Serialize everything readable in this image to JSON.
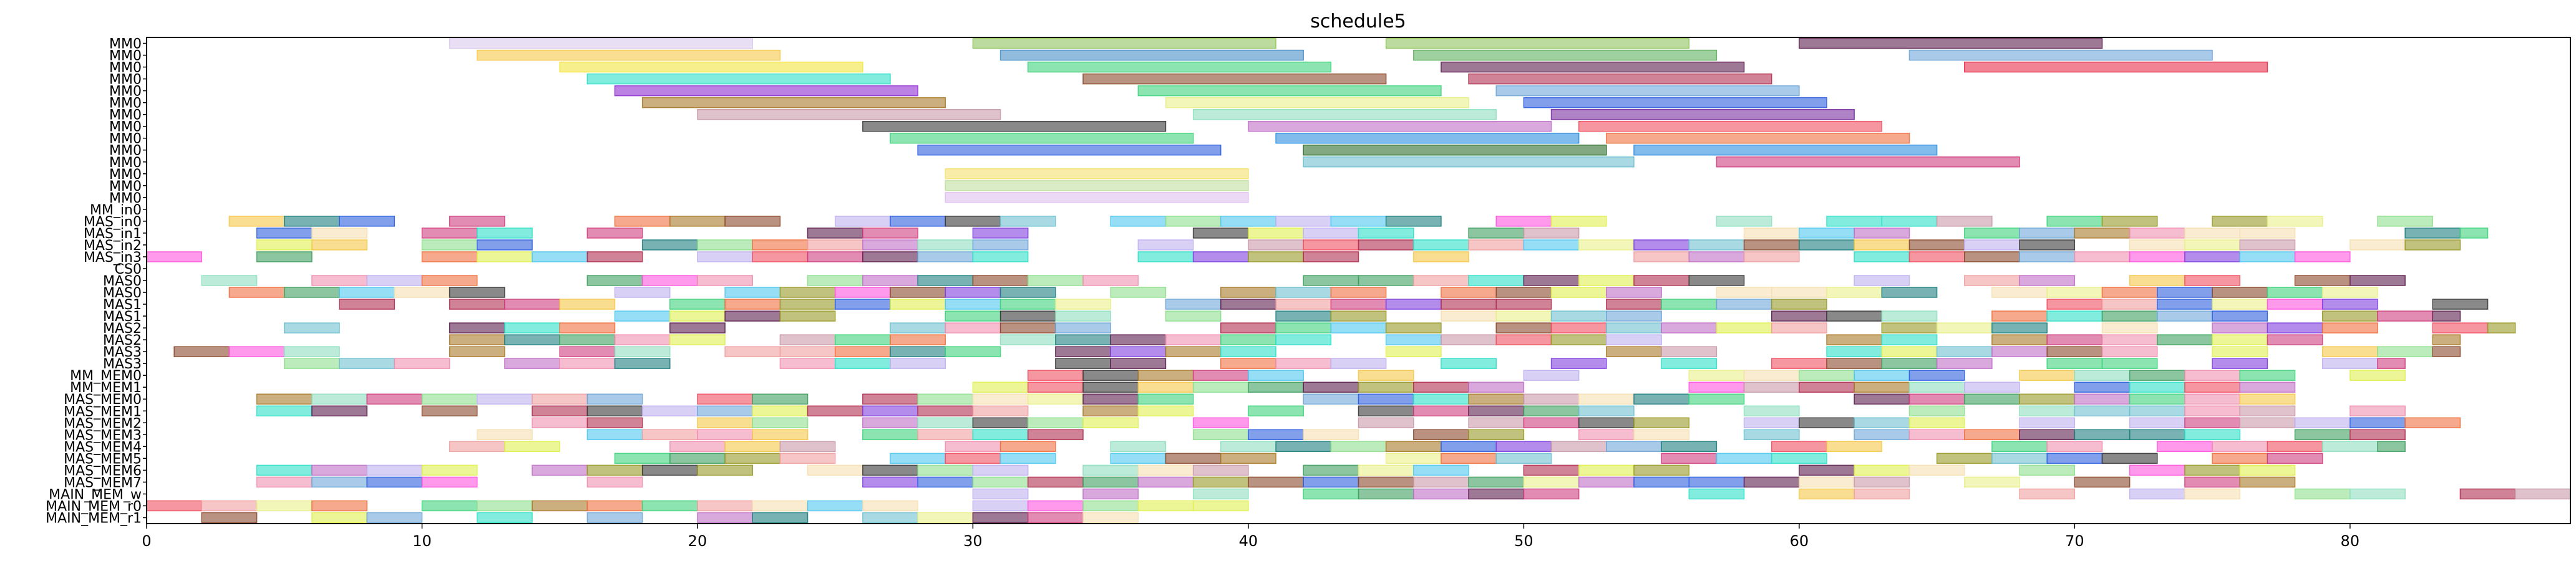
{
  "chart_data": {
    "type": "gantt",
    "title": "schedule5",
    "xlabel": "",
    "ylabel": "",
    "xlim": [
      0,
      88
    ],
    "x_ticks": [
      0,
      10,
      20,
      30,
      40,
      50,
      60,
      70,
      80
    ],
    "grid": false,
    "rows": [
      "MM0",
      "MM0",
      "MM0",
      "MM0",
      "MM0",
      "MM0",
      "MM0",
      "MM0",
      "MM0",
      "MM0",
      "MM0",
      "MM0",
      "MM0",
      "MM0",
      "MM_in0",
      "MAS_in0",
      "MAS_in1",
      "MAS_in2",
      "MAS_in3",
      "CS0",
      "MAS0",
      "MAS0",
      "MAS1",
      "MAS1",
      "MAS2",
      "MAS2",
      "MAS3",
      "MAS3",
      "MM_MEM0",
      "MM_MEM1",
      "MAS_MEM0",
      "MAS_MEM1",
      "MAS_MEM2",
      "MAS_MEM3",
      "MAS_MEM4",
      "MAS_MEM5",
      "MAS_MEM6",
      "MAS_MEM7",
      "MAIN_MEM_w",
      "MAIN_MEM_r0",
      "MAIN_MEM_r1"
    ],
    "dense_rows": [
      {
        "row": 15,
        "start": 1,
        "end": 83,
        "seed": 11
      },
      {
        "row": 16,
        "start": 2,
        "end": 85,
        "seed": 12
      },
      {
        "row": 17,
        "start": 4,
        "end": 84,
        "seed": 13
      },
      {
        "row": 18,
        "start": 0,
        "end": 80,
        "seed": 14
      },
      {
        "row": 20,
        "start": 2,
        "end": 84,
        "seed": 15
      },
      {
        "row": 21,
        "start": 3,
        "end": 83,
        "seed": 16
      },
      {
        "row": 22,
        "start": 5,
        "end": 85,
        "seed": 17
      },
      {
        "row": 23,
        "start": 13,
        "end": 84,
        "seed": 18
      },
      {
        "row": 24,
        "start": 5,
        "end": 86,
        "seed": 19
      },
      {
        "row": 25,
        "start": 11,
        "end": 84,
        "seed": 20
      },
      {
        "row": 26,
        "start": 1,
        "end": 84,
        "seed": 21
      },
      {
        "row": 27,
        "start": 5,
        "end": 82,
        "seed": 22
      },
      {
        "row": 28,
        "start": 28,
        "end": 82,
        "seed": 23
      },
      {
        "row": 29,
        "start": 28,
        "end": 78,
        "seed": 24
      },
      {
        "row": 30,
        "start": 4,
        "end": 82,
        "seed": 25
      },
      {
        "row": 31,
        "start": 4,
        "end": 84,
        "seed": 26
      },
      {
        "row": 32,
        "start": 14,
        "end": 84,
        "seed": 27
      },
      {
        "row": 33,
        "start": 12,
        "end": 83,
        "seed": 28
      },
      {
        "row": 34,
        "start": 9,
        "end": 82,
        "seed": 29
      },
      {
        "row": 35,
        "start": 15,
        "end": 82,
        "seed": 30
      },
      {
        "row": 36,
        "start": 4,
        "end": 82,
        "seed": 31
      },
      {
        "row": 37,
        "start": 4,
        "end": 80,
        "seed": 32
      },
      {
        "row": 38,
        "start": 30,
        "end": 88,
        "seed": 33
      },
      {
        "row": 39,
        "start": 0,
        "end": 42,
        "seed": 34
      },
      {
        "row": 40,
        "start": 0,
        "end": 36,
        "seed": 35
      }
    ],
    "tasks": [
      {
        "row": 0,
        "start": 11,
        "end": 22,
        "color": "#d9c9ec"
      },
      {
        "row": 0,
        "start": 30,
        "end": 41,
        "color": "#8fc35f"
      },
      {
        "row": 0,
        "start": 45,
        "end": 56,
        "color": "#8fc35f"
      },
      {
        "row": 0,
        "start": 60,
        "end": 71,
        "color": "#5e1f4f"
      },
      {
        "row": 1,
        "start": 12,
        "end": 23,
        "color": "#f5c84a"
      },
      {
        "row": 1,
        "start": 31,
        "end": 42,
        "color": "#4a90c8"
      },
      {
        "row": 1,
        "start": 46,
        "end": 57,
        "color": "#5fb05f"
      },
      {
        "row": 1,
        "start": 64,
        "end": 75,
        "color": "#6fa7d8"
      },
      {
        "row": 2,
        "start": 15,
        "end": 26,
        "color": "#f2e43e"
      },
      {
        "row": 2,
        "start": 32,
        "end": 43,
        "color": "#3fd47d"
      },
      {
        "row": 2,
        "start": 47,
        "end": 58,
        "color": "#5e1f4f"
      },
      {
        "row": 2,
        "start": 66,
        "end": 77,
        "color": "#e8304f"
      },
      {
        "row": 3,
        "start": 16,
        "end": 27,
        "color": "#2fe0c8"
      },
      {
        "row": 3,
        "start": 34,
        "end": 45,
        "color": "#8b4a2e"
      },
      {
        "row": 3,
        "start": 48,
        "end": 59,
        "color": "#b03050"
      },
      {
        "row": 4,
        "start": 17,
        "end": 28,
        "color": "#8f2fd0"
      },
      {
        "row": 4,
        "start": 36,
        "end": 47,
        "color": "#3fd47d"
      },
      {
        "row": 4,
        "start": 49,
        "end": 60,
        "color": "#6fa7d8"
      },
      {
        "row": 5,
        "start": 18,
        "end": 29,
        "color": "#a87a2a"
      },
      {
        "row": 5,
        "start": 37,
        "end": 48,
        "color": "#e9f08a"
      },
      {
        "row": 5,
        "start": 50,
        "end": 61,
        "color": "#2f5fe0"
      },
      {
        "row": 6,
        "start": 20,
        "end": 31,
        "color": "#c99aa8"
      },
      {
        "row": 6,
        "start": 38,
        "end": 49,
        "color": "#8fe0c0"
      },
      {
        "row": 6,
        "start": 51,
        "end": 62,
        "color": "#7a2f9f"
      },
      {
        "row": 7,
        "start": 26,
        "end": 37,
        "color": "#3a3a3a"
      },
      {
        "row": 7,
        "start": 40,
        "end": 51,
        "color": "#c070c8"
      },
      {
        "row": 7,
        "start": 52,
        "end": 63,
        "color": "#f05060"
      },
      {
        "row": 8,
        "start": 27,
        "end": 38,
        "color": "#3fd47d"
      },
      {
        "row": 8,
        "start": 41,
        "end": 52,
        "color": "#2f8fe0"
      },
      {
        "row": 8,
        "start": 53,
        "end": 64,
        "color": "#f07040"
      },
      {
        "row": 9,
        "start": 28,
        "end": 39,
        "color": "#2f5fe0"
      },
      {
        "row": 9,
        "start": 42,
        "end": 53,
        "color": "#2f6f2f"
      },
      {
        "row": 9,
        "start": 54,
        "end": 65,
        "color": "#2f8fe0"
      },
      {
        "row": 10,
        "start": 42,
        "end": 54,
        "color": "#70c0d0"
      },
      {
        "row": 10,
        "start": 57,
        "end": 68,
        "color": "#d04080"
      },
      {
        "row": 11,
        "start": 29,
        "end": 40,
        "color": "#f5e070"
      },
      {
        "row": 12,
        "start": 29,
        "end": 40,
        "color": "#c0e0a0"
      },
      {
        "row": 13,
        "start": 29,
        "end": 40,
        "color": "#e0c0f0"
      }
    ]
  }
}
